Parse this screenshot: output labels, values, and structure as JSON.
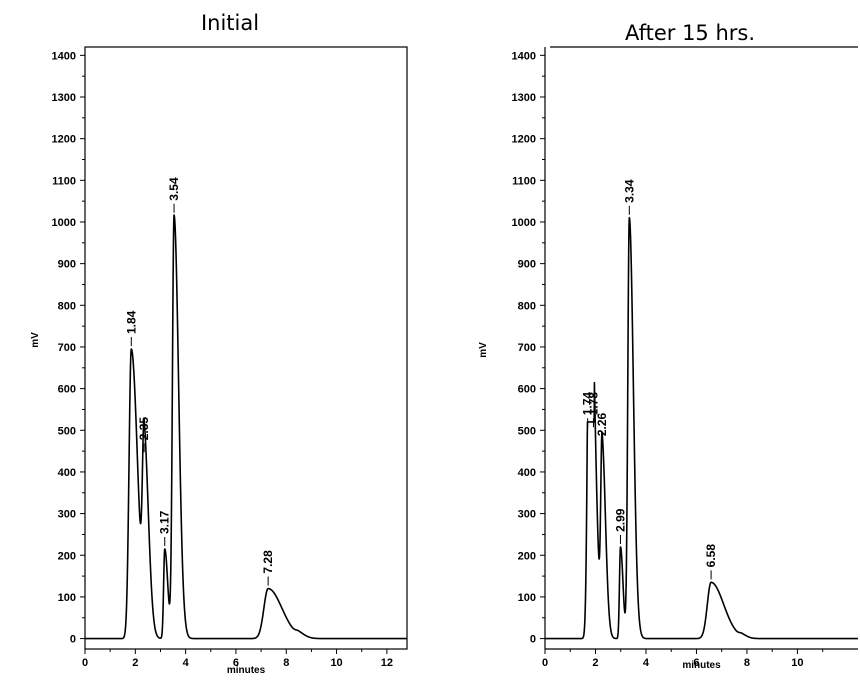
{
  "chart_data": [
    {
      "type": "line",
      "title": "Initial",
      "xlabel": "minutes",
      "ylabel": "mV",
      "xlim": [
        0,
        12.8
      ],
      "ylim": [
        -25,
        1420
      ],
      "xticks": [
        "0",
        "2",
        "4",
        "6",
        "8",
        "10",
        "12"
      ],
      "yticks": [
        "0",
        "100",
        "200",
        "300",
        "400",
        "500",
        "600",
        "700",
        "800",
        "900",
        "1000",
        "1100",
        "1200",
        "1300",
        "1400"
      ],
      "peaks": [
        {
          "rt": 1.84,
          "label": "1.84",
          "height": 695
        },
        {
          "rt": 2.35,
          "label": "2.35",
          "height": 440
        },
        {
          "rt": 3.17,
          "label": "3.17",
          "height": 215
        },
        {
          "rt": 3.54,
          "label": "3.54",
          "height": 1015
        },
        {
          "rt": 7.28,
          "label": "7.28",
          "height": 120
        },
        {
          "rt": 8.5,
          "label": "",
          "height": 8
        }
      ]
    },
    {
      "type": "line",
      "title": "After 15 hrs.",
      "xlabel": "minutes",
      "ylabel": "mV",
      "xlim": [
        0,
        12.4
      ],
      "ylim": [
        -25,
        1420
      ],
      "xticks": [
        "0",
        "2",
        "4",
        "6",
        "8",
        "10"
      ],
      "yticks": [
        "0",
        "100",
        "200",
        "300",
        "400",
        "500",
        "600",
        "700",
        "800",
        "900",
        "1000",
        "1100",
        "1200",
        "1300",
        "1400"
      ],
      "peaks": [
        {
          "rt": 1.74,
          "label": "1.74",
          "height": 500
        },
        {
          "rt": 1.78,
          "label": "1.78",
          "height": 500
        },
        {
          "rt": 2.26,
          "label": "2.26",
          "height": 450
        },
        {
          "rt": 2.99,
          "label": "2.99",
          "height": 220
        },
        {
          "rt": 3.34,
          "label": "3.34",
          "height": 1010
        },
        {
          "rt": 6.58,
          "label": "6.58",
          "height": 135
        },
        {
          "rt": 7.8,
          "label": "",
          "height": 6
        }
      ]
    }
  ]
}
